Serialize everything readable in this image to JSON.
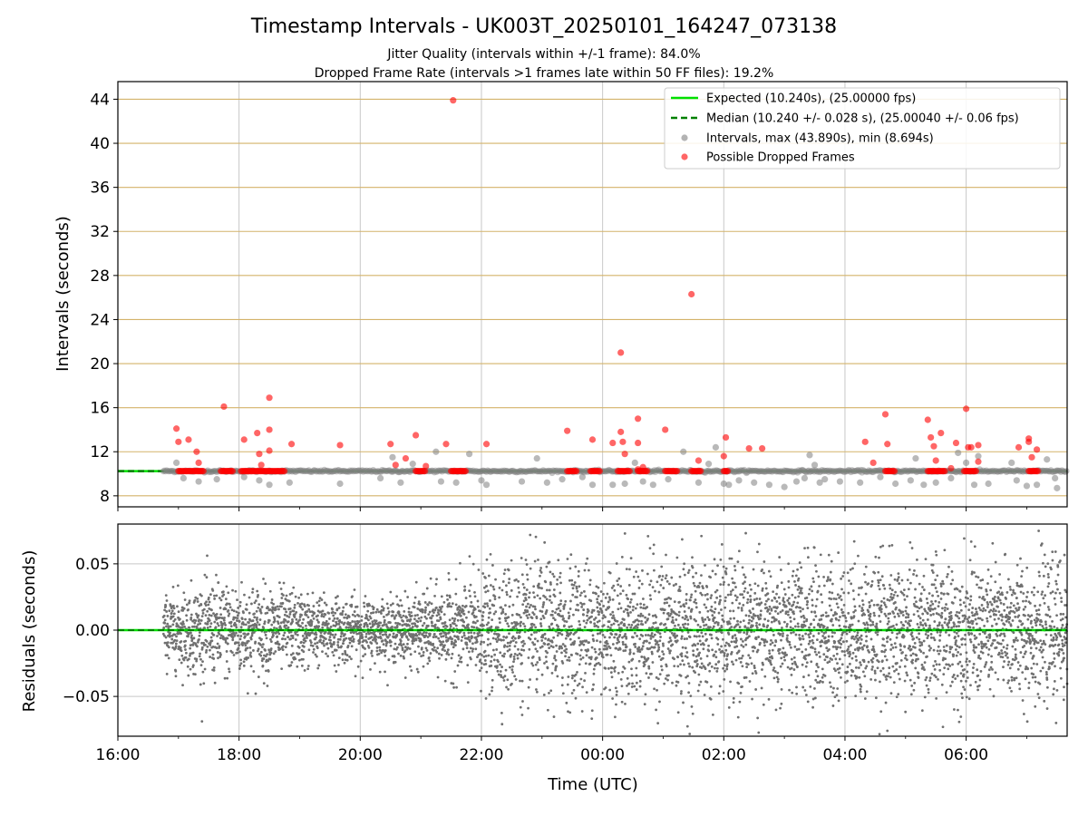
{
  "chart_data": [
    {
      "type": "scatter",
      "title": "Timestamp Intervals - UK003T_20250101_164247_073138",
      "subtitle_lines": [
        "Jitter Quality (intervals within +/-1 frame): 84.0%",
        "Dropped Frame Rate (intervals >1 frames late within 50 FF files): 19.2%"
      ],
      "xlabel": "",
      "ylabel": "Intervals (seconds)",
      "xlim": [
        "2025-01-01 16:00",
        "2025-01-02 07:40"
      ],
      "ylim": [
        7,
        45.6
      ],
      "yticks": [
        "8",
        "12",
        "16",
        "20",
        "24",
        "28",
        "32",
        "36",
        "40",
        "44"
      ],
      "grid": true,
      "legend_position": "upper-right",
      "legend": [
        "Expected (10.240s), (25.00000 fps)",
        "Median (10.240 +/- 0.028 s), (25.00040 +/- 0.06 fps)",
        "Intervals, max (43.890s), min (8.694s)",
        "Possible Dropped Frames"
      ],
      "colors": {
        "expected": "#00e000",
        "median": "#008000",
        "intervals": "#808080",
        "dropped": "#ff0000",
        "hgrid": "#d4b36a",
        "vgrid": "#c8c8c8"
      },
      "series": [
        {
          "role": "expected",
          "style": "solid-line",
          "x": [
            "2025-01-01 16:00",
            "2025-01-02 07:40"
          ],
          "y": [
            10.24,
            10.24
          ]
        },
        {
          "role": "median",
          "style": "dashed-line",
          "x": [
            "2025-01-01 16:00",
            "2025-01-02 07:40"
          ],
          "y": [
            10.24,
            10.24
          ]
        },
        {
          "role": "intervals",
          "points": [
            [
              "2025-01-01 16:58",
              11.0
            ],
            [
              "2025-01-01 17:05",
              9.6
            ],
            [
              "2025-01-01 17:20",
              9.3
            ],
            [
              "2025-01-01 17:38",
              9.5
            ],
            [
              "2025-01-01 18:05",
              9.7
            ],
            [
              "2025-01-01 18:20",
              9.4
            ],
            [
              "2025-01-01 18:30",
              9.0
            ],
            [
              "2025-01-01 18:50",
              9.2
            ],
            [
              "2025-01-01 19:40",
              9.1
            ],
            [
              "2025-01-01 20:20",
              9.6
            ],
            [
              "2025-01-01 20:32",
              11.5
            ],
            [
              "2025-01-01 20:40",
              9.2
            ],
            [
              "2025-01-01 20:52",
              10.9
            ],
            [
              "2025-01-01 21:15",
              12.0
            ],
            [
              "2025-01-01 21:20",
              9.3
            ],
            [
              "2025-01-01 21:35",
              9.2
            ],
            [
              "2025-01-01 21:48",
              11.8
            ],
            [
              "2025-01-01 22:00",
              9.4
            ],
            [
              "2025-01-01 22:05",
              9.0
            ],
            [
              "2025-01-01 22:40",
              9.3
            ],
            [
              "2025-01-01 22:55",
              11.4
            ],
            [
              "2025-01-01 23:05",
              9.2
            ],
            [
              "2025-01-01 23:20",
              9.5
            ],
            [
              "2025-01-01 23:40",
              9.7
            ],
            [
              "2025-01-01 23:50",
              9.0
            ],
            [
              "2025-01-02 00:10",
              9.0
            ],
            [
              "2025-01-02 00:22",
              9.1
            ],
            [
              "2025-01-02 00:32",
              11.0
            ],
            [
              "2025-01-02 00:40",
              9.3
            ],
            [
              "2025-01-02 00:50",
              9.0
            ],
            [
              "2025-01-02 01:05",
              9.5
            ],
            [
              "2025-01-02 01:20",
              12.0
            ],
            [
              "2025-01-02 01:35",
              9.2
            ],
            [
              "2025-01-02 01:45",
              10.9
            ],
            [
              "2025-01-02 01:52",
              12.4
            ],
            [
              "2025-01-02 02:00",
              9.1
            ],
            [
              "2025-01-02 02:05",
              9.0
            ],
            [
              "2025-01-02 02:15",
              9.4
            ],
            [
              "2025-01-02 02:30",
              9.2
            ],
            [
              "2025-01-02 02:45",
              9.0
            ],
            [
              "2025-01-02 03:00",
              8.8
            ],
            [
              "2025-01-02 03:12",
              9.3
            ],
            [
              "2025-01-02 03:20",
              9.6
            ],
            [
              "2025-01-02 03:25",
              11.7
            ],
            [
              "2025-01-02 03:30",
              10.8
            ],
            [
              "2025-01-02 03:35",
              9.2
            ],
            [
              "2025-01-02 03:40",
              9.5
            ],
            [
              "2025-01-02 03:55",
              9.3
            ],
            [
              "2025-01-02 04:15",
              9.2
            ],
            [
              "2025-01-02 04:35",
              9.7
            ],
            [
              "2025-01-02 04:50",
              9.1
            ],
            [
              "2025-01-02 05:05",
              9.4
            ],
            [
              "2025-01-02 05:10",
              11.4
            ],
            [
              "2025-01-02 05:18",
              9.0
            ],
            [
              "2025-01-02 05:30",
              9.2
            ],
            [
              "2025-01-02 05:45",
              9.6
            ],
            [
              "2025-01-02 05:52",
              11.9
            ],
            [
              "2025-01-02 06:00",
              11.0
            ],
            [
              "2025-01-02 06:08",
              9.0
            ],
            [
              "2025-01-02 06:12",
              11.6
            ],
            [
              "2025-01-02 06:22",
              9.1
            ],
            [
              "2025-01-02 06:45",
              11.0
            ],
            [
              "2025-01-02 06:50",
              9.4
            ],
            [
              "2025-01-02 07:00",
              8.9
            ],
            [
              "2025-01-02 07:10",
              9.0
            ],
            [
              "2025-01-02 07:20",
              11.3
            ],
            [
              "2025-01-02 07:28",
              9.6
            ],
            [
              "2025-01-02 07:30",
              8.7
            ]
          ]
        },
        {
          "role": "dropped",
          "points": [
            [
              "2025-01-01 16:58",
              14.1
            ],
            [
              "2025-01-01 17:00",
              12.9
            ],
            [
              "2025-01-01 17:10",
              13.1
            ],
            [
              "2025-01-01 17:18",
              12.0
            ],
            [
              "2025-01-01 17:20",
              11.0
            ],
            [
              "2025-01-01 17:45",
              16.1
            ],
            [
              "2025-01-01 18:05",
              13.1
            ],
            [
              "2025-01-01 18:18",
              13.7
            ],
            [
              "2025-01-01 18:20",
              11.8
            ],
            [
              "2025-01-01 18:22",
              10.8
            ],
            [
              "2025-01-01 18:30",
              14.0
            ],
            [
              "2025-01-01 18:30",
              12.1
            ],
            [
              "2025-01-01 18:30",
              16.9
            ],
            [
              "2025-01-01 18:52",
              12.7
            ],
            [
              "2025-01-01 19:40",
              12.6
            ],
            [
              "2025-01-01 20:30",
              12.7
            ],
            [
              "2025-01-01 20:35",
              10.8
            ],
            [
              "2025-01-01 20:45",
              11.4
            ],
            [
              "2025-01-01 20:55",
              13.5
            ],
            [
              "2025-01-01 21:05",
              10.7
            ],
            [
              "2025-01-01 21:25",
              12.7
            ],
            [
              "2025-01-01 21:32",
              43.9
            ],
            [
              "2025-01-01 22:05",
              12.7
            ],
            [
              "2025-01-01 23:25",
              13.9
            ],
            [
              "2025-01-01 23:50",
              13.1
            ],
            [
              "2025-01-02 00:10",
              12.8
            ],
            [
              "2025-01-02 00:18",
              21.0
            ],
            [
              "2025-01-02 00:18",
              13.8
            ],
            [
              "2025-01-02 00:20",
              12.9
            ],
            [
              "2025-01-02 00:22",
              11.8
            ],
            [
              "2025-01-02 00:35",
              10.4
            ],
            [
              "2025-01-02 00:35",
              12.8
            ],
            [
              "2025-01-02 00:35",
              15.0
            ],
            [
              "2025-01-02 00:40",
              10.6
            ],
            [
              "2025-01-02 01:02",
              14.0
            ],
            [
              "2025-01-02 01:28",
              26.3
            ],
            [
              "2025-01-02 01:35",
              11.2
            ],
            [
              "2025-01-02 02:00",
              11.6
            ],
            [
              "2025-01-02 02:02",
              13.3
            ],
            [
              "2025-01-02 02:25",
              12.3
            ],
            [
              "2025-01-02 02:38",
              12.3
            ],
            [
              "2025-01-02 04:20",
              12.9
            ],
            [
              "2025-01-02 04:28",
              11.0
            ],
            [
              "2025-01-02 04:40",
              15.4
            ],
            [
              "2025-01-02 04:42",
              12.7
            ],
            [
              "2025-01-02 05:22",
              14.9
            ],
            [
              "2025-01-02 05:25",
              13.3
            ],
            [
              "2025-01-02 05:28",
              12.5
            ],
            [
              "2025-01-02 05:30",
              11.2
            ],
            [
              "2025-01-02 05:35",
              13.7
            ],
            [
              "2025-01-02 05:45",
              10.5
            ],
            [
              "2025-01-02 05:50",
              12.8
            ],
            [
              "2025-01-02 06:00",
              15.9
            ],
            [
              "2025-01-02 06:02",
              12.4
            ],
            [
              "2025-01-02 06:05",
              12.4
            ],
            [
              "2025-01-02 06:12",
              11.1
            ],
            [
              "2025-01-02 06:12",
              12.6
            ],
            [
              "2025-01-02 06:52",
              12.4
            ],
            [
              "2025-01-02 07:02",
              13.2
            ],
            [
              "2025-01-02 07:02",
              12.9
            ],
            [
              "2025-01-02 07:05",
              11.5
            ],
            [
              "2025-01-02 07:10",
              12.2
            ]
          ],
          "clusters": [
            {
              "x": [
                "2025-01-01 17:00",
                "2025-01-01 17:25"
              ],
              "y": 10.24
            },
            {
              "x": [
                "2025-01-01 17:42",
                "2025-01-01 17:55"
              ],
              "y": 10.24
            },
            {
              "x": [
                "2025-01-01 18:02",
                "2025-01-01 18:45"
              ],
              "y": 10.24
            },
            {
              "x": [
                "2025-01-01 20:55",
                "2025-01-01 21:05"
              ],
              "y": 10.24
            },
            {
              "x": [
                "2025-01-01 21:30",
                "2025-01-01 21:45"
              ],
              "y": 10.24
            },
            {
              "x": [
                "2025-01-01 23:25",
                "2025-01-01 23:35"
              ],
              "y": 10.24
            },
            {
              "x": [
                "2025-01-01 23:48",
                "2025-01-01 23:58"
              ],
              "y": 10.24
            },
            {
              "x": [
                "2025-01-02 00:15",
                "2025-01-02 00:28"
              ],
              "y": 10.24
            },
            {
              "x": [
                "2025-01-02 00:35",
                "2025-01-02 00:45"
              ],
              "y": 10.24
            },
            {
              "x": [
                "2025-01-02 01:02",
                "2025-01-02 01:15"
              ],
              "y": 10.24
            },
            {
              "x": [
                "2025-01-02 01:28",
                "2025-01-02 01:38"
              ],
              "y": 10.24
            },
            {
              "x": [
                "2025-01-02 02:00",
                "2025-01-02 02:05"
              ],
              "y": 10.24
            },
            {
              "x": [
                "2025-01-02 04:40",
                "2025-01-02 04:50"
              ],
              "y": 10.24
            },
            {
              "x": [
                "2025-01-02 05:22",
                "2025-01-02 05:40"
              ],
              "y": 10.24
            },
            {
              "x": [
                "2025-01-02 05:58",
                "2025-01-02 06:10"
              ],
              "y": 10.24
            },
            {
              "x": [
                "2025-01-02 07:02",
                "2025-01-02 07:12"
              ],
              "y": 10.24
            }
          ]
        }
      ]
    },
    {
      "type": "scatter",
      "xlabel": "Time (UTC)",
      "ylabel": "Residuals (seconds)",
      "xlim": [
        "2025-01-01 16:00",
        "2025-01-02 07:40"
      ],
      "ylim": [
        -0.08,
        0.08
      ],
      "yticks": [
        "−0.05",
        "0.00",
        "0.05"
      ],
      "xticks": [
        "16:00",
        "18:00",
        "20:00",
        "22:00",
        "00:00",
        "02:00",
        "04:00",
        "06:00"
      ],
      "grid": true,
      "colors": {
        "points": "#707070",
        "zero_line": "#00e000",
        "zero_dashed": "#008000",
        "grid": "#c8c8c8"
      },
      "series": [
        {
          "role": "residuals",
          "x_range": [
            "2025-01-01 16:45",
            "2025-01-02 07:40"
          ],
          "spread_sd": [
            [
              "2025-01-01 16:45",
              0.012
            ],
            [
              "2025-01-01 17:30",
              0.018
            ],
            [
              "2025-01-01 18:30",
              0.016
            ],
            [
              "2025-01-01 19:30",
              0.012
            ],
            [
              "2025-01-01 20:30",
              0.011
            ],
            [
              "2025-01-01 21:30",
              0.016
            ],
            [
              "2025-01-01 22:30",
              0.025
            ],
            [
              "2025-01-02 01:00",
              0.026
            ],
            [
              "2025-01-02 04:00",
              0.026
            ],
            [
              "2025-01-02 07:40",
              0.025
            ]
          ],
          "approx_point_count": 5400
        }
      ]
    }
  ]
}
